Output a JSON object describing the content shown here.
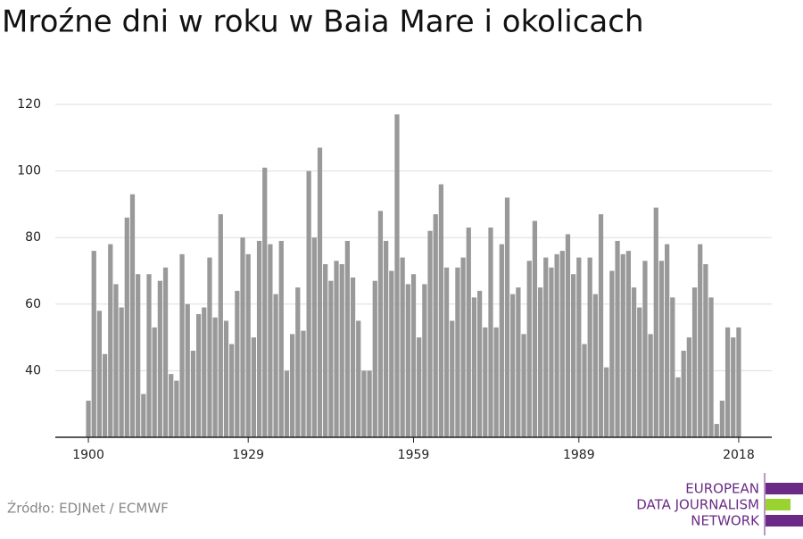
{
  "chart_data": {
    "type": "bar",
    "title": "Mroźne dni w roku w Baia Mare i okolicach",
    "source": "Źródło: EDJNet / ECMWF",
    "color": "#999999",
    "grid": true,
    "x": [
      1900,
      1901,
      1902,
      1903,
      1904,
      1905,
      1906,
      1907,
      1908,
      1909,
      1910,
      1911,
      1912,
      1913,
      1914,
      1915,
      1916,
      1917,
      1918,
      1919,
      1920,
      1921,
      1922,
      1923,
      1924,
      1925,
      1926,
      1927,
      1928,
      1929,
      1930,
      1931,
      1932,
      1933,
      1934,
      1935,
      1936,
      1937,
      1938,
      1939,
      1940,
      1941,
      1942,
      1943,
      1944,
      1945,
      1946,
      1947,
      1948,
      1949,
      1950,
      1951,
      1952,
      1953,
      1954,
      1955,
      1956,
      1957,
      1958,
      1959,
      1960,
      1961,
      1962,
      1963,
      1964,
      1965,
      1966,
      1967,
      1968,
      1969,
      1970,
      1971,
      1972,
      1973,
      1974,
      1975,
      1976,
      1977,
      1978,
      1979,
      1980,
      1981,
      1982,
      1983,
      1984,
      1985,
      1986,
      1987,
      1988,
      1989,
      1990,
      1991,
      1992,
      1993,
      1994,
      1995,
      1996,
      1997,
      1998,
      1999,
      2000,
      2001,
      2002,
      2003,
      2004,
      2005,
      2006,
      2007,
      2008,
      2009,
      2010,
      2011,
      2012,
      2013,
      2014,
      2015,
      2016,
      2017,
      2018
    ],
    "values": [
      31,
      76,
      58,
      45,
      78,
      66,
      59,
      86,
      93,
      69,
      33,
      69,
      53,
      67,
      71,
      39,
      37,
      75,
      60,
      46,
      57,
      59,
      74,
      56,
      87,
      55,
      48,
      64,
      80,
      75,
      50,
      79,
      101,
      78,
      63,
      79,
      40,
      51,
      65,
      52,
      100,
      80,
      107,
      72,
      67,
      73,
      72,
      79,
      68,
      55,
      40,
      40,
      67,
      88,
      79,
      70,
      117,
      74,
      66,
      69,
      50,
      66,
      82,
      87,
      96,
      71,
      55,
      71,
      74,
      83,
      62,
      64,
      53,
      83,
      53,
      78,
      92,
      63,
      65,
      51,
      73,
      85,
      65,
      74,
      71,
      75,
      76,
      81,
      69,
      74,
      48,
      74,
      63,
      87,
      41,
      70,
      79,
      75,
      76,
      65,
      59,
      73,
      51,
      89,
      73,
      78,
      62,
      38,
      46,
      50,
      65,
      78,
      72,
      62,
      24,
      31,
      53,
      50,
      53
    ],
    "xlim": [
      1894,
      2024
    ],
    "xticks": [
      1900,
      1929,
      1959,
      1989,
      2018
    ],
    "ylim": [
      20,
      120
    ],
    "yticks": [
      40,
      60,
      80,
      100,
      120
    ]
  },
  "logo": [
    "EUROPEAN",
    "DATA JOURNALISM",
    "NETWORK"
  ]
}
